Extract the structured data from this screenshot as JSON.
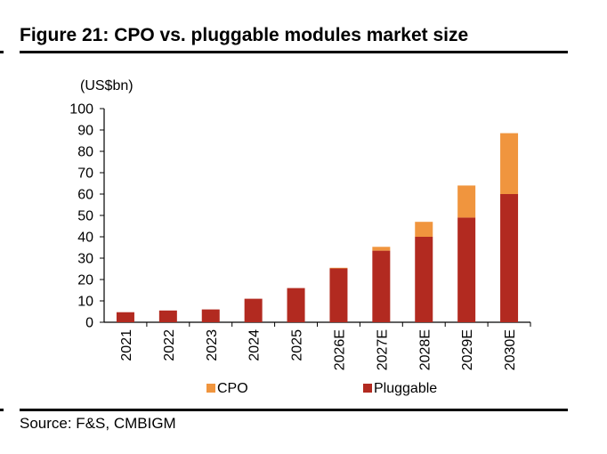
{
  "figure": {
    "title": "Figure 21: CPO vs. pluggable modules market size",
    "source": "Source: F&S, CMBIGM"
  },
  "chart_data": {
    "type": "bar",
    "stacked": true,
    "title": "Figure 21: CPO vs. pluggable modules market size",
    "ylabel": "(US$bn)",
    "xlabel": "",
    "ylim": [
      0,
      100
    ],
    "yticks": [
      0,
      10,
      20,
      30,
      40,
      50,
      60,
      70,
      80,
      90,
      100
    ],
    "categories": [
      "2021",
      "2022",
      "2023",
      "2024",
      "2025",
      "2026E",
      "2027E",
      "2028E",
      "2029E",
      "2030E"
    ],
    "series": [
      {
        "name": "Pluggable",
        "color": "#b22a20",
        "values": [
          4.7,
          5.5,
          6.0,
          11.0,
          16.0,
          25.2,
          33.5,
          40.0,
          49.0,
          60.0
        ]
      },
      {
        "name": "CPO",
        "color": "#f0953e",
        "values": [
          0,
          0,
          0,
          0,
          0,
          0.3,
          1.8,
          7.0,
          15.0,
          28.5
        ]
      }
    ],
    "legend_order": [
      "CPO",
      "Pluggable"
    ],
    "legend_position": "bottom",
    "grid": false
  }
}
